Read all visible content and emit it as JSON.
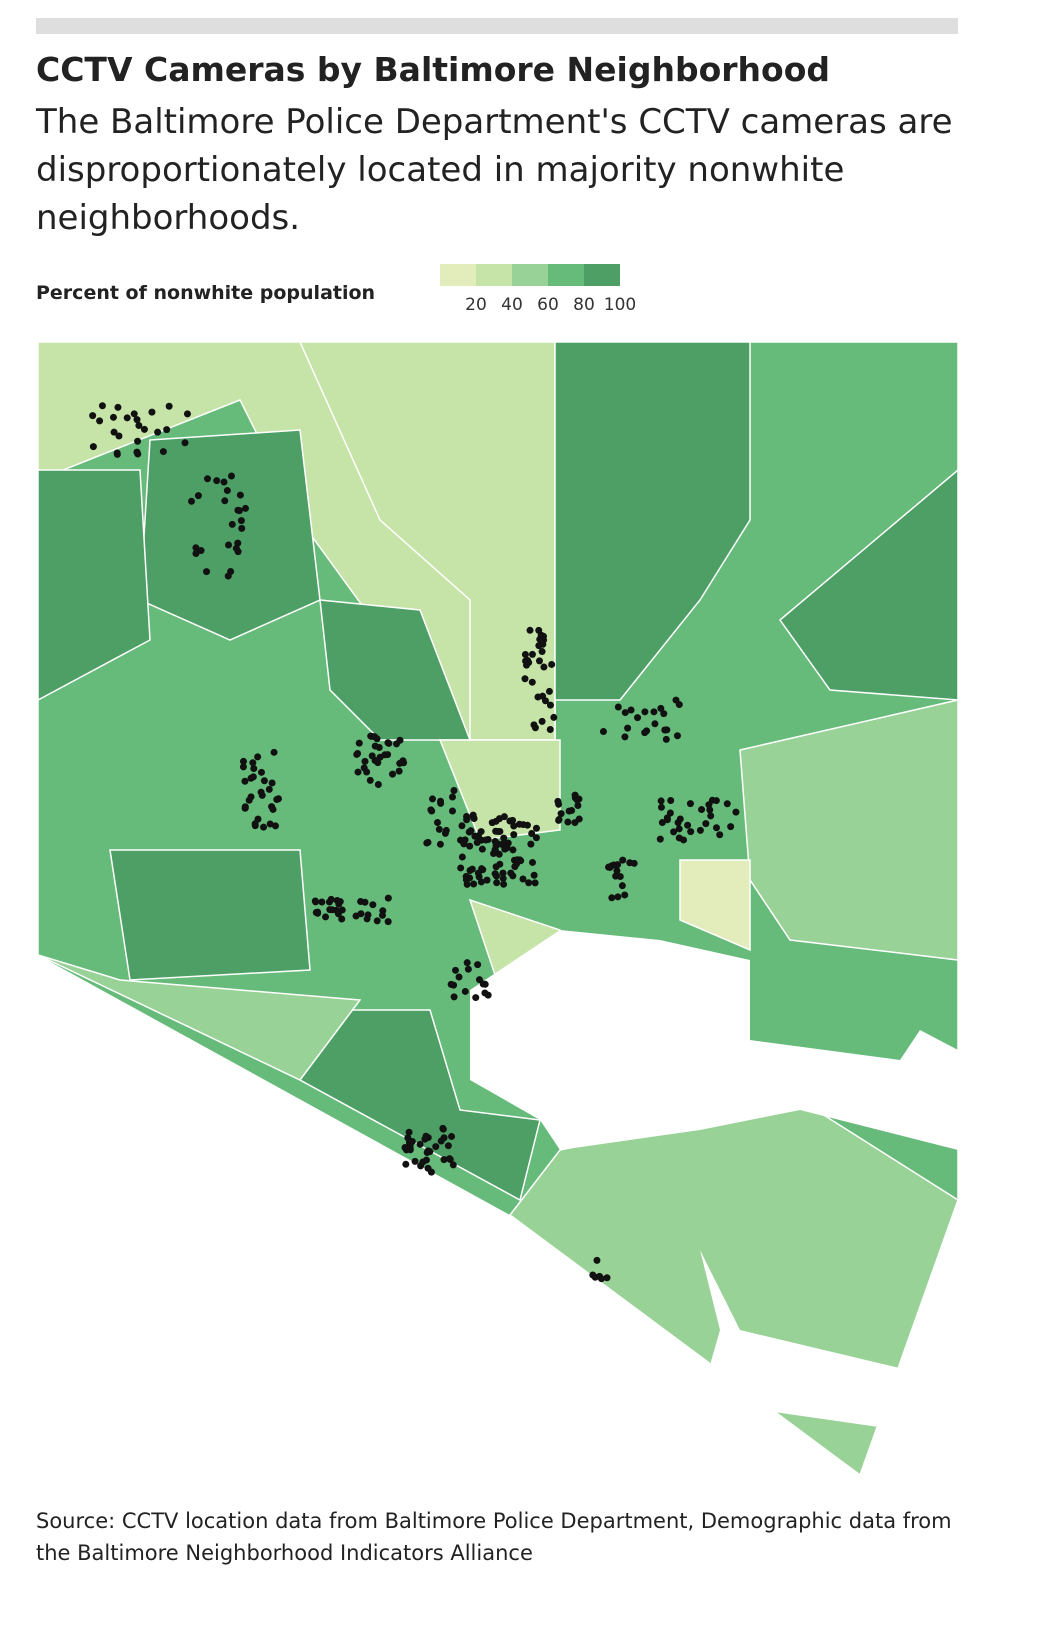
{
  "header": {
    "title": "CCTV Cameras by Baltimore Neighborhood",
    "subtitle": "The Baltimore Police Department's CCTV cameras are disproportionately located in majority nonwhite neighborhoods."
  },
  "legend": {
    "title": "Percent of nonwhite population",
    "ticks": [
      20,
      40,
      60,
      80,
      100
    ],
    "colors": [
      "#e2edbb",
      "#c6e4a8",
      "#99d297",
      "#66bb7a",
      "#4e9f66"
    ]
  },
  "source": "Source: CCTV location data from Baltimore Police Department, Demographic data from the Baltimore Neighborhood Indicators Alliance"
}
